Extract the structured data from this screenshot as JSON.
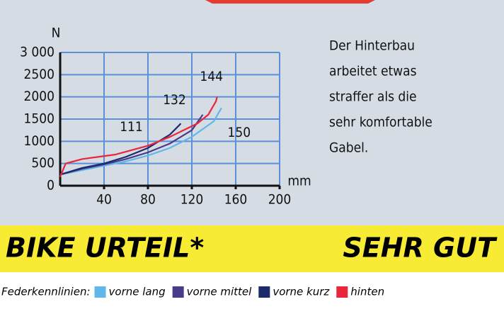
{
  "chart_data": {
    "type": "line",
    "y_label": "N",
    "x_label": "mm",
    "xlim": [
      0,
      200
    ],
    "xticks": [
      40,
      80,
      120,
      160,
      200
    ],
    "ylim": [
      0,
      3000
    ],
    "yticks": [
      0,
      500,
      1000,
      1500,
      2000,
      2500,
      {
        "value": 3000,
        "label": "3 000"
      }
    ],
    "grid": true,
    "legend_title": "Federkennlinien:",
    "series": [
      {
        "name": "vorne lang",
        "color": "#5fb8e8",
        "travel_label": "150",
        "x": [
          0,
          20,
          40,
          60,
          80,
          100,
          120,
          140,
          147
        ],
        "values": [
          250,
          350,
          450,
          550,
          680,
          850,
          1100,
          1450,
          1750
        ]
      },
      {
        "name": "vorne mittel",
        "color": "#4a3a8a",
        "travel_label": "132",
        "x": [
          0,
          20,
          40,
          60,
          80,
          100,
          120,
          130
        ],
        "values": [
          250,
          380,
          480,
          600,
          750,
          950,
          1250,
          1600
        ]
      },
      {
        "name": "vorne kurz",
        "color": "#1c2a6e",
        "travel_label": "111",
        "x": [
          0,
          20,
          40,
          60,
          80,
          100,
          110
        ],
        "values": [
          250,
          400,
          500,
          650,
          850,
          1150,
          1400
        ]
      },
      {
        "name": "hinten",
        "color": "#e8283a",
        "travel_label": "144",
        "x": [
          0,
          5,
          20,
          50,
          80,
          100,
          125,
          135,
          142,
          143
        ],
        "values": [
          200,
          500,
          600,
          700,
          900,
          1100,
          1400,
          1600,
          1900,
          2000
        ]
      }
    ]
  },
  "note": [
    "Der Hinterbau",
    "arbeitet etwas",
    "straffer als die",
    "sehr komfortable",
    "Gabel."
  ],
  "verdict": {
    "label": "BIKE URTEIL*",
    "rating": "SEHR GUT"
  }
}
